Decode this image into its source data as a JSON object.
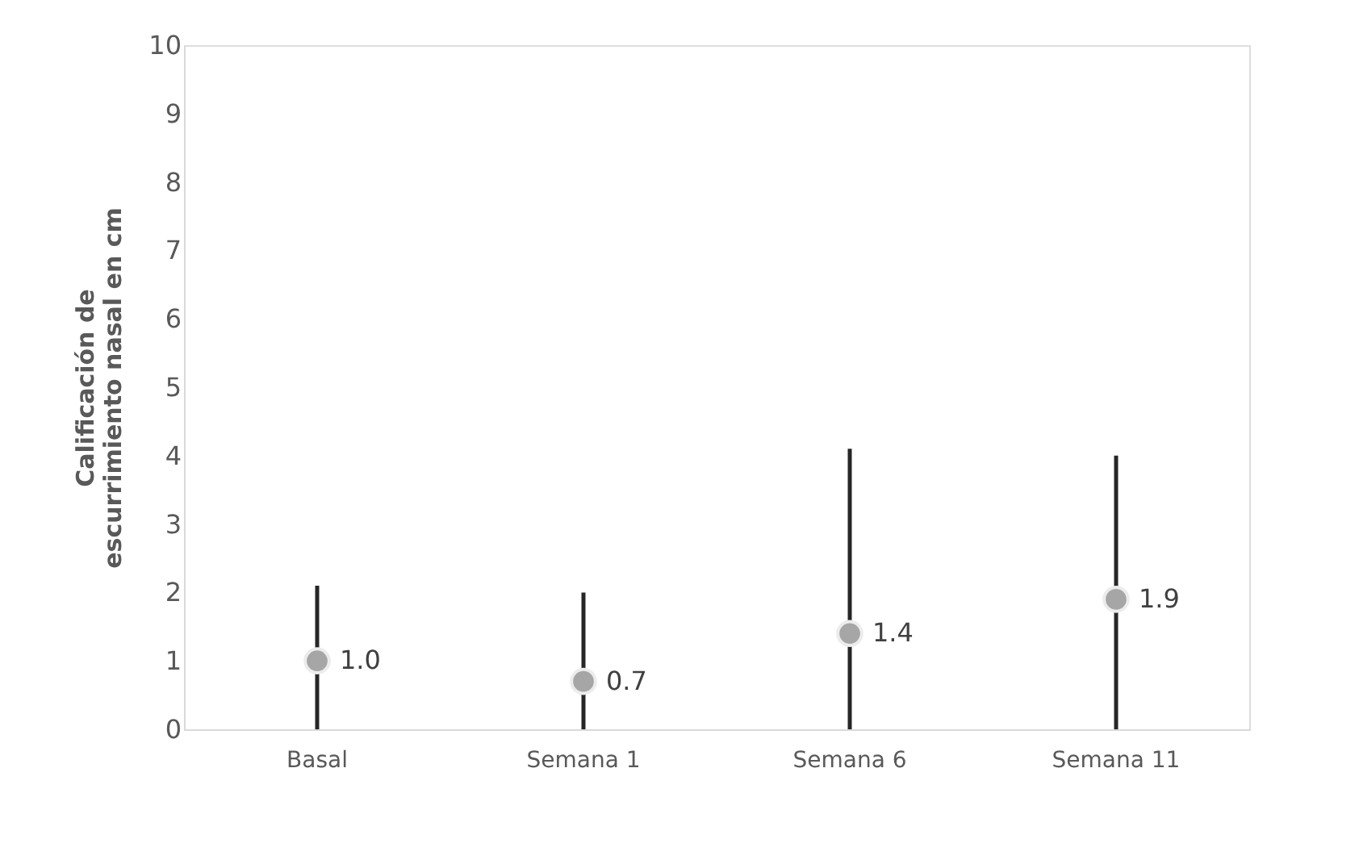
{
  "chart_data": {
    "type": "scatter",
    "ylabel": "Calificación de escurrimiento nasal en cm",
    "categories": [
      "Basal",
      "Semana 1",
      "Semana 6",
      "Semana 11"
    ],
    "series": [
      {
        "color": "#a6a6a6",
        "values": [
          1.0,
          0.7,
          1.4,
          1.9
        ],
        "value_labels": [
          "1.0",
          "0.7",
          "1.4",
          "1.9"
        ],
        "errors": [
          [
            0,
            2.1
          ],
          [
            0,
            2.0
          ],
          [
            0,
            4.1
          ],
          [
            0,
            4.0
          ]
        ]
      }
    ],
    "ylim": [
      0,
      10
    ],
    "yticks": [
      0,
      1,
      2,
      3,
      4,
      5,
      6,
      7,
      8,
      9,
      10
    ],
    "grid": false,
    "marker": "circle"
  }
}
